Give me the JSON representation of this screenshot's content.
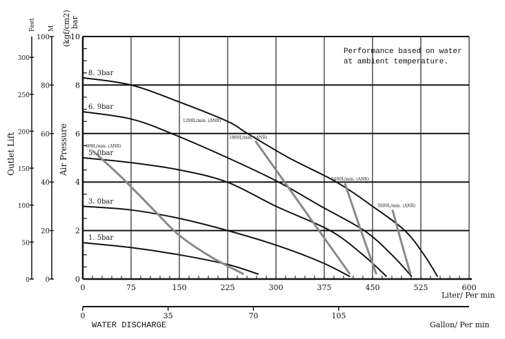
{
  "chart_data": {
    "type": "line",
    "note_lines": [
      "Performance based on water",
      "at ambient temperature."
    ],
    "x_axis": {
      "label": "Liter/ Per min",
      "range": [
        0,
        600
      ],
      "ticks": [
        0,
        75,
        150,
        225,
        300,
        375,
        450,
        525,
        600
      ]
    },
    "x2_axis": {
      "label": "Gallon/ Per min",
      "title": "WATER DISCHARGE",
      "range": [
        0,
        158.5
      ],
      "ticks": [
        0,
        35,
        70,
        105
      ]
    },
    "y_axis": {
      "label": "Air Pressure",
      "unit_lines": [
        "(kgf/cm2)",
        "bar"
      ],
      "range": [
        0,
        10
      ],
      "ticks": [
        0,
        2,
        4,
        6,
        8,
        10
      ]
    },
    "y_lift_m": {
      "label": "M",
      "range": [
        0,
        100
      ],
      "ticks": [
        0,
        20,
        40,
        60,
        80,
        100
      ]
    },
    "y_lift_feet": {
      "label": "Feet",
      "ticks": [
        0,
        50,
        100,
        150,
        200,
        250,
        300
      ]
    },
    "y_title": "Outlet Lift",
    "grid": true,
    "series": [
      {
        "name": "8. 3bar",
        "color": "#111111",
        "points": [
          [
            0,
            8.3
          ],
          [
            75,
            8.0
          ],
          [
            150,
            7.3
          ],
          [
            225,
            6.5
          ],
          [
            256,
            6.0
          ],
          [
            320,
            5.0
          ],
          [
            394,
            4.0
          ],
          [
            450,
            3.0
          ],
          [
            500,
            2.0
          ],
          [
            530,
            1.0
          ],
          [
            551,
            0.1
          ]
        ]
      },
      {
        "name": "6. 9bar",
        "color": "#111111",
        "points": [
          [
            0,
            6.9
          ],
          [
            75,
            6.6
          ],
          [
            138,
            6.0
          ],
          [
            225,
            5.0
          ],
          [
            304,
            4.0
          ],
          [
            370,
            3.0
          ],
          [
            437,
            2.0
          ],
          [
            480,
            1.0
          ],
          [
            511,
            0.1
          ]
        ]
      },
      {
        "name": "5. 0bar",
        "color": "#111111",
        "points": [
          [
            0,
            5.0
          ],
          [
            75,
            4.8
          ],
          [
            150,
            4.5
          ],
          [
            224,
            4.0
          ],
          [
            300,
            3.0
          ],
          [
            384,
            2.0
          ],
          [
            435,
            1.0
          ],
          [
            472,
            0.1
          ]
        ]
      },
      {
        "name": "3. 0bar",
        "color": "#111111",
        "points": [
          [
            0,
            3.0
          ],
          [
            75,
            2.85
          ],
          [
            150,
            2.5
          ],
          [
            225,
            2.0
          ],
          [
            300,
            1.4
          ],
          [
            370,
            0.7
          ],
          [
            415,
            0.1
          ]
        ]
      },
      {
        "name": "1. 5bar",
        "color": "#111111",
        "points": [
          [
            0,
            1.5
          ],
          [
            75,
            1.3
          ],
          [
            150,
            1.0
          ],
          [
            225,
            0.6
          ],
          [
            273,
            0.2
          ]
        ]
      }
    ],
    "air_consumption": [
      {
        "name": "600L/min. (ANR)",
        "color": "#888888",
        "points": [
          [
            15,
            5.3
          ],
          [
            60,
            4.2
          ],
          [
            112,
            2.8
          ],
          [
            150,
            1.8
          ],
          [
            200,
            0.9
          ],
          [
            250,
            0.2
          ]
        ]
      },
      {
        "name": "1200L/min. (ANR)",
        "color": "#888888",
        "points": []
      },
      {
        "name": "1800L/min. (ANR)",
        "color": "#888888",
        "points": [
          [
            268,
            5.7
          ],
          [
            340,
            3.0
          ],
          [
            415,
            0.2
          ]
        ]
      },
      {
        "name": "2400L/min. (ANR)",
        "color": "#888888",
        "points": [
          [
            407,
            3.95
          ],
          [
            432,
            2.0
          ],
          [
            456,
            0.2
          ]
        ]
      },
      {
        "name": "3000L/min. (ANR)",
        "color": "#888888",
        "points": [
          [
            481,
            2.85
          ],
          [
            495,
            1.5
          ],
          [
            509,
            0.2
          ]
        ]
      }
    ]
  }
}
